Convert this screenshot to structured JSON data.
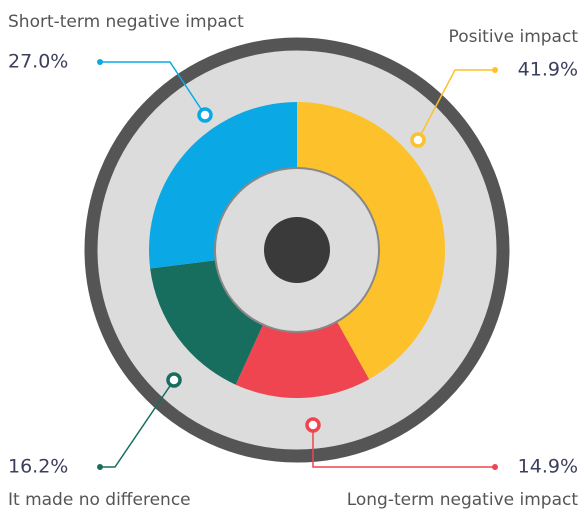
{
  "chart_data": {
    "type": "donut",
    "categories": [
      "Positive impact",
      "Long-term negative impact",
      "It made no difference",
      "Short-term negative impact"
    ],
    "values": [
      41.9,
      14.9,
      16.2,
      27.0
    ],
    "value_labels": [
      "41.9%",
      "14.9%",
      "16.2%",
      "27.0%"
    ],
    "colors": [
      "#fcc12b",
      "#ef4550",
      "#176e5f",
      "#0aa9e6"
    ]
  }
}
